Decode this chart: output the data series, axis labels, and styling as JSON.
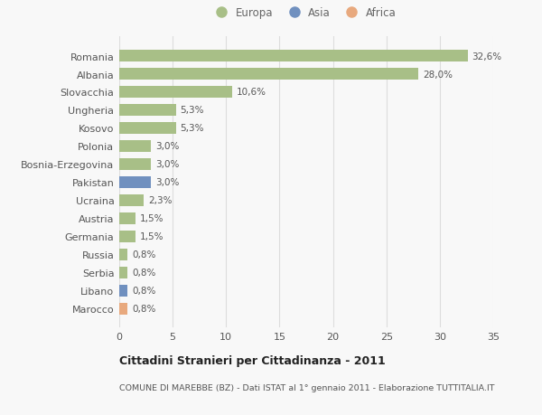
{
  "categories": [
    "Marocco",
    "Libano",
    "Serbia",
    "Russia",
    "Germania",
    "Austria",
    "Ucraina",
    "Pakistan",
    "Bosnia-Erzegovina",
    "Polonia",
    "Kosovo",
    "Ungheria",
    "Slovacchia",
    "Albania",
    "Romania"
  ],
  "values": [
    0.8,
    0.8,
    0.8,
    0.8,
    1.5,
    1.5,
    2.3,
    3.0,
    3.0,
    3.0,
    5.3,
    5.3,
    10.6,
    28.0,
    32.6
  ],
  "labels": [
    "0,8%",
    "0,8%",
    "0,8%",
    "0,8%",
    "1,5%",
    "1,5%",
    "2,3%",
    "3,0%",
    "3,0%",
    "3,0%",
    "5,3%",
    "5,3%",
    "10,6%",
    "28,0%",
    "32,6%"
  ],
  "colors": [
    "#e8a97e",
    "#7090bf",
    "#a8bf87",
    "#a8bf87",
    "#a8bf87",
    "#a8bf87",
    "#a8bf87",
    "#7090bf",
    "#a8bf87",
    "#a8bf87",
    "#a8bf87",
    "#a8bf87",
    "#a8bf87",
    "#a8bf87",
    "#a8bf87"
  ],
  "legend_labels": [
    "Europa",
    "Asia",
    "Africa"
  ],
  "legend_colors": [
    "#a8bf87",
    "#7090bf",
    "#e8a97e"
  ],
  "title_bold": "Cittadini Stranieri per Cittadinanza - 2011",
  "subtitle": "COMUNE DI MAREBBE (BZ) - Dati ISTAT al 1° gennaio 2011 - Elaborazione TUTTITALIA.IT",
  "xlim": [
    0,
    35
  ],
  "xticks": [
    0,
    5,
    10,
    15,
    20,
    25,
    30,
    35
  ],
  "bg_color": "#f8f8f8",
  "grid_color": "#dddddd",
  "bar_height": 0.65
}
